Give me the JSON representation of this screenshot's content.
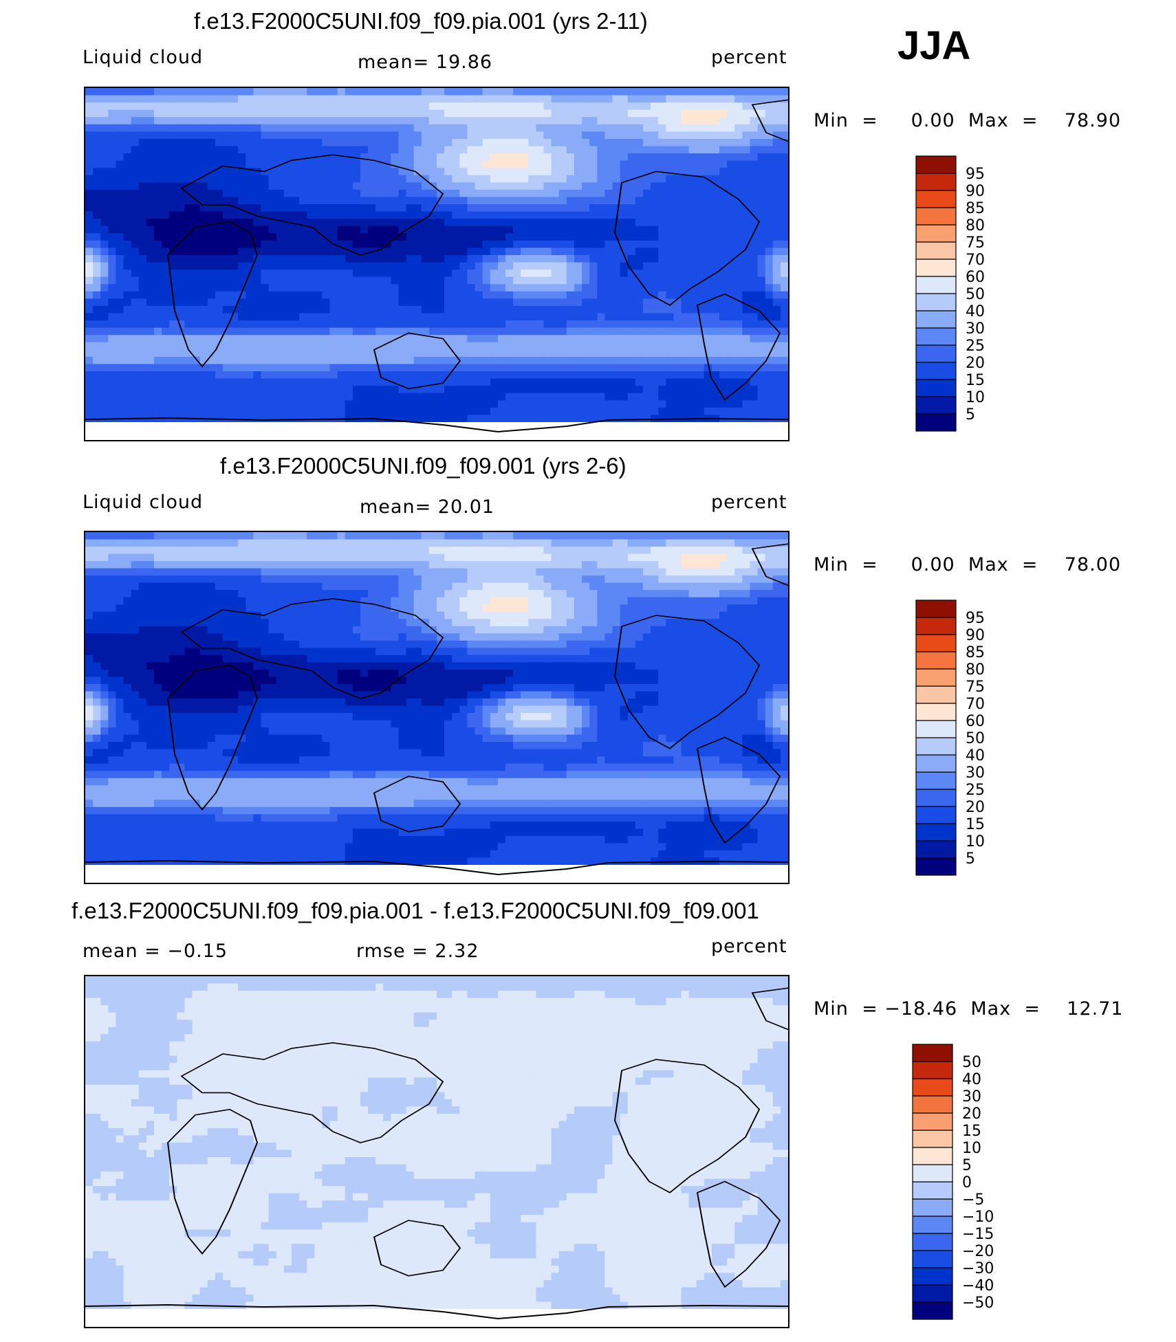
{
  "season": "JJA",
  "panels": [
    {
      "title": "f.e13.F2000C5UNI.f09_f09.pia.001 (yrs 2-11)",
      "left_label": "Liquid cloud",
      "center_label": "mean=   19.86",
      "right_label": "percent",
      "minmax": "Min  =     0.00  Max  =    78.90",
      "field": "abs"
    },
    {
      "title": "f.e13.F2000C5UNI.f09_f09.001 (yrs 2-6)",
      "left_label": "Liquid cloud",
      "center_label": "mean=   20.01",
      "right_label": "percent",
      "minmax": "Min  =     0.00  Max  =    78.00",
      "field": "abs"
    },
    {
      "title": "f.e13.F2000C5UNI.f09_f09.pia.001 - f.e13.F2000C5UNI.f09_f09.001",
      "left_label": "mean  =   −0.15",
      "center_label": "rmse  =     2.32",
      "right_label": "percent",
      "minmax": "Min  = −18.46  Max  =    12.71",
      "field": "diff"
    }
  ],
  "chart_data": [
    {
      "type": "heatmap",
      "title": "f.e13.F2000C5UNI.f09_f09.pia.001 (yrs 2-11)",
      "variable": "Liquid cloud",
      "units": "percent",
      "mean": 19.86,
      "min": 0.0,
      "max": 78.9,
      "colorbar": {
        "labels": [
          "5",
          "10",
          "15",
          "20",
          "25",
          "30",
          "40",
          "50",
          "60",
          "70",
          "75",
          "80",
          "85",
          "90",
          "95"
        ],
        "colors": [
          "#00007e",
          "#001aa6",
          "#0033cc",
          "#1a4ce6",
          "#3a66f0",
          "#5c88f5",
          "#8aabf7",
          "#b5cbf9",
          "#dde8fb",
          "#fde6d4",
          "#fbc6a5",
          "#f8a070",
          "#f4743f",
          "#e94b18",
          "#c5280a",
          "#8f0f00"
        ]
      }
    },
    {
      "type": "heatmap",
      "title": "f.e13.F2000C5UNI.f09_f09.001 (yrs 2-6)",
      "variable": "Liquid cloud",
      "units": "percent",
      "mean": 20.01,
      "min": 0.0,
      "max": 78.0,
      "colorbar": {
        "labels": [
          "5",
          "10",
          "15",
          "20",
          "25",
          "30",
          "40",
          "50",
          "60",
          "70",
          "75",
          "80",
          "85",
          "90",
          "95"
        ],
        "colors": [
          "#00007e",
          "#001aa6",
          "#0033cc",
          "#1a4ce6",
          "#3a66f0",
          "#5c88f5",
          "#8aabf7",
          "#b5cbf9",
          "#dde8fb",
          "#fde6d4",
          "#fbc6a5",
          "#f8a070",
          "#f4743f",
          "#e94b18",
          "#c5280a",
          "#8f0f00"
        ]
      }
    },
    {
      "type": "heatmap",
      "title": "f.e13.F2000C5UNI.f09_f09.pia.001 - f.e13.F2000C5UNI.f09_f09.001",
      "units": "percent",
      "mean": -0.15,
      "rmse": 2.32,
      "min": -18.46,
      "max": 12.71,
      "colorbar": {
        "labels": [
          "−50",
          "−40",
          "−30",
          "−20",
          "−15",
          "−10",
          "−5",
          "0",
          "5",
          "10",
          "15",
          "20",
          "30",
          "40",
          "50"
        ],
        "colors": [
          "#00007e",
          "#001aa6",
          "#0033cc",
          "#1a4ce6",
          "#3a66f0",
          "#5c88f5",
          "#8aabf7",
          "#b5cbf9",
          "#dde8fb",
          "#fde6d4",
          "#fbc6a5",
          "#f8a070",
          "#f4743f",
          "#e94b18",
          "#c5280a",
          "#8f0f00"
        ]
      }
    }
  ]
}
